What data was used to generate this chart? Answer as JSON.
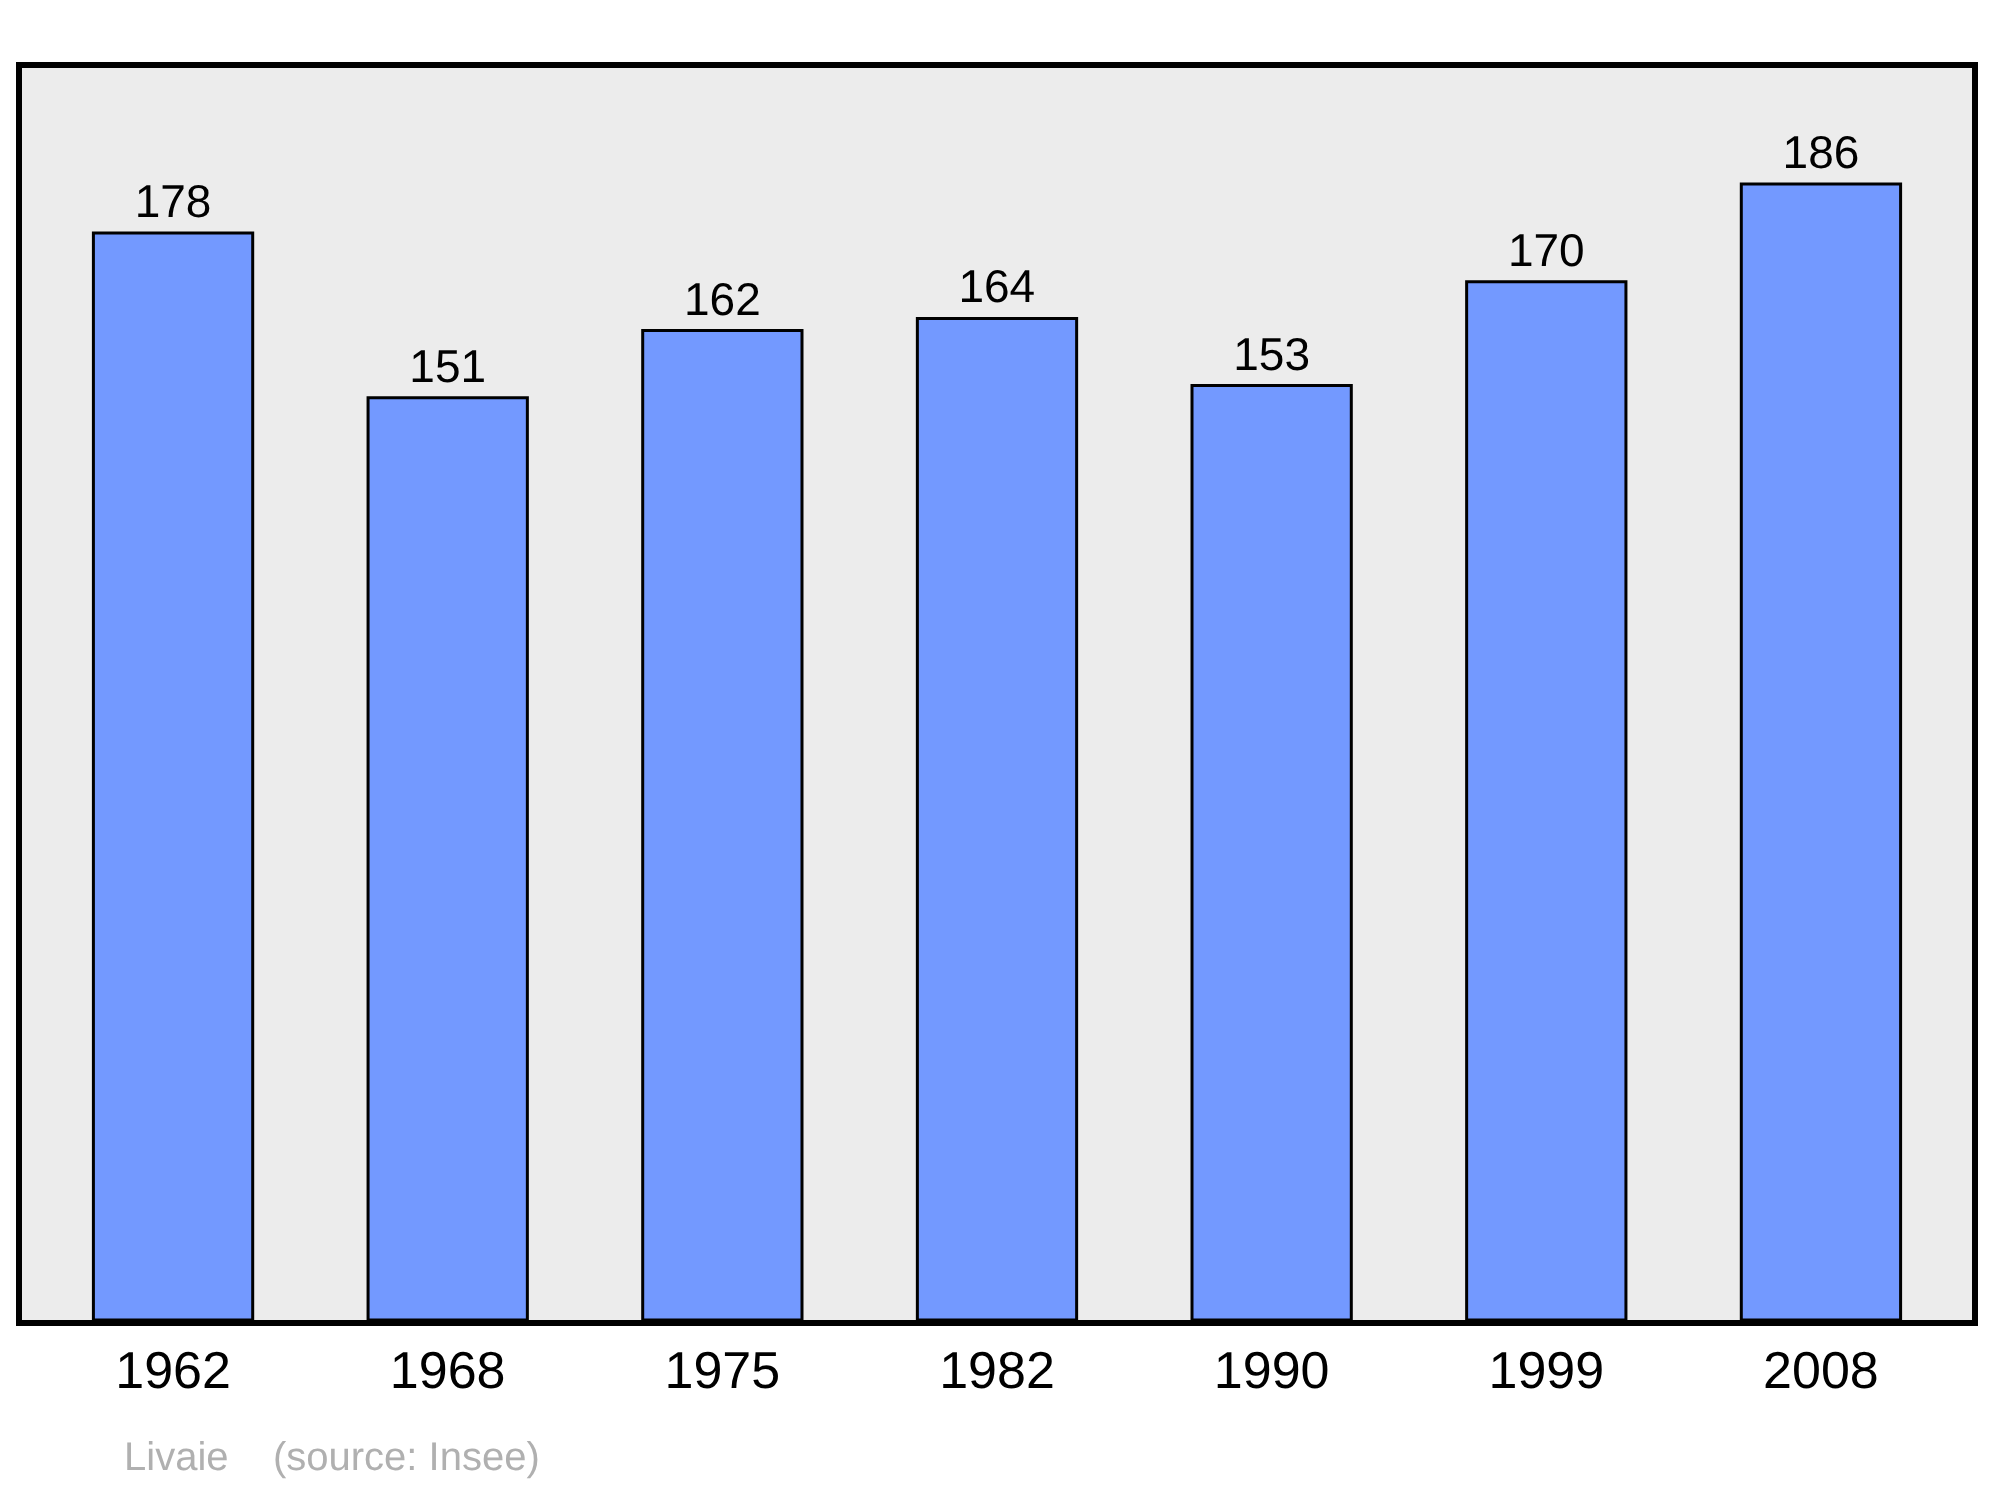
{
  "chart_data": {
    "type": "bar",
    "categories": [
      "1962",
      "1968",
      "1975",
      "1982",
      "1990",
      "1999",
      "2008"
    ],
    "values": [
      178,
      151,
      162,
      164,
      153,
      170,
      186
    ],
    "color": "#7399ff",
    "ylim": [
      0,
      205
    ],
    "data_labels": true,
    "grid": false,
    "legend": false,
    "tick_labels": "x",
    "annotations": [
      "Livaie    (source: Insee)"
    ]
  }
}
